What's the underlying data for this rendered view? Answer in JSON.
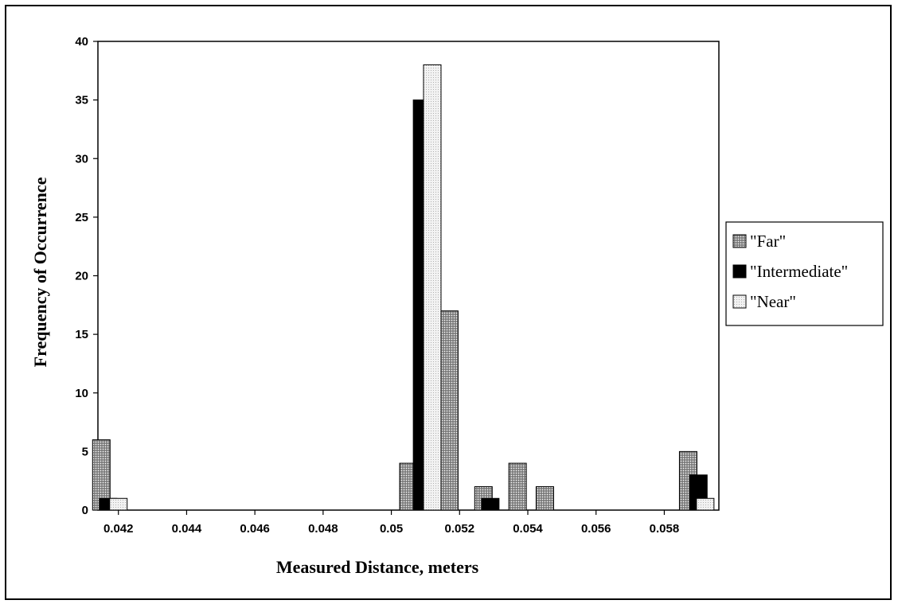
{
  "chart_data": {
    "type": "bar",
    "xlabel": "Measured Distance, meters",
    "ylabel": "Frequency of Occurrence",
    "ylim": [
      0,
      40
    ],
    "yticks": [
      "0",
      "5",
      "10",
      "15",
      "20",
      "25",
      "30",
      "35",
      "40"
    ],
    "xlim": [
      0.0414,
      0.0596
    ],
    "xticks": [
      {
        "value": 0.042,
        "label": "0.042"
      },
      {
        "value": 0.044,
        "label": "0.044"
      },
      {
        "value": 0.046,
        "label": "0.046"
      },
      {
        "value": 0.048,
        "label": "0.048"
      },
      {
        "value": 0.05,
        "label": "0.05"
      },
      {
        "value": 0.052,
        "label": "0.052"
      },
      {
        "value": 0.054,
        "label": "0.054"
      },
      {
        "value": 0.056,
        "label": "0.056"
      },
      {
        "value": 0.058,
        "label": "0.058"
      }
    ],
    "legend_position": "right",
    "series": [
      {
        "name": "\"Far\"",
        "pattern": "dense-dots",
        "points": [
          {
            "x": 0.0415,
            "y": 6
          },
          {
            "x": 0.0505,
            "y": 4
          },
          {
            "x": 0.0517,
            "y": 17
          },
          {
            "x": 0.0527,
            "y": 2
          },
          {
            "x": 0.0537,
            "y": 4
          },
          {
            "x": 0.0545,
            "y": 2
          },
          {
            "x": 0.0587,
            "y": 5
          }
        ]
      },
      {
        "name": "\"Intermediate\"",
        "pattern": "solid-black",
        "points": [
          {
            "x": 0.0417,
            "y": 1
          },
          {
            "x": 0.0509,
            "y": 35
          },
          {
            "x": 0.0529,
            "y": 1
          },
          {
            "x": 0.059,
            "y": 3
          }
        ]
      },
      {
        "name": "\"Near\"",
        "pattern": "light-dots",
        "points": [
          {
            "x": 0.042,
            "y": 1
          },
          {
            "x": 0.0512,
            "y": 38
          },
          {
            "x": 0.0592,
            "y": 1
          }
        ]
      }
    ]
  }
}
